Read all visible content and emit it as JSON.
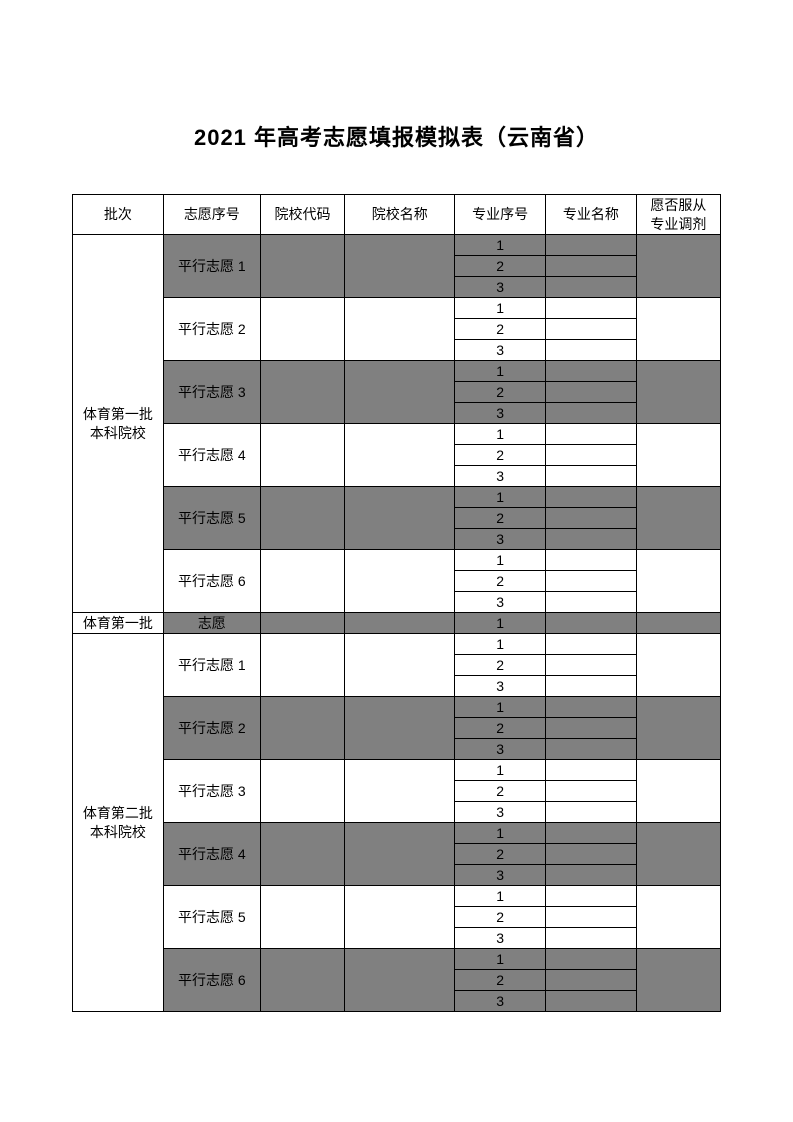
{
  "title": "2021 年高考志愿填报模拟表（云南省）",
  "headers": {
    "batch": "批次",
    "choiceNo": "志愿序号",
    "schoolCode": "院校代码",
    "schoolName": "院校名称",
    "majorNo": "专业序号",
    "majorName": "专业名称",
    "adjust": "愿否服从\n专业调剂"
  },
  "batches": [
    {
      "name": "体育第一批\n本科院校",
      "choices": [
        "平行志愿 1",
        "平行志愿 2",
        "平行志愿 3",
        "平行志愿 4",
        "平行志愿 5",
        "平行志愿 6"
      ],
      "majors": [
        "1",
        "2",
        "3"
      ],
      "startShaded": true
    },
    {
      "name": "体育第一批",
      "singleChoice": "志愿",
      "majors": [
        "1"
      ],
      "shaded": true
    },
    {
      "name": "体育第二批\n本科院校",
      "choices": [
        "平行志愿 1",
        "平行志愿 2",
        "平行志愿 3",
        "平行志愿 4",
        "平行志愿 5",
        "平行志愿 6"
      ],
      "majors": [
        "1",
        "2",
        "3"
      ],
      "startShaded": false
    }
  ],
  "colors": {
    "shaded": "#808080",
    "white": "#ffffff",
    "border": "#000000",
    "text": "#000000"
  }
}
